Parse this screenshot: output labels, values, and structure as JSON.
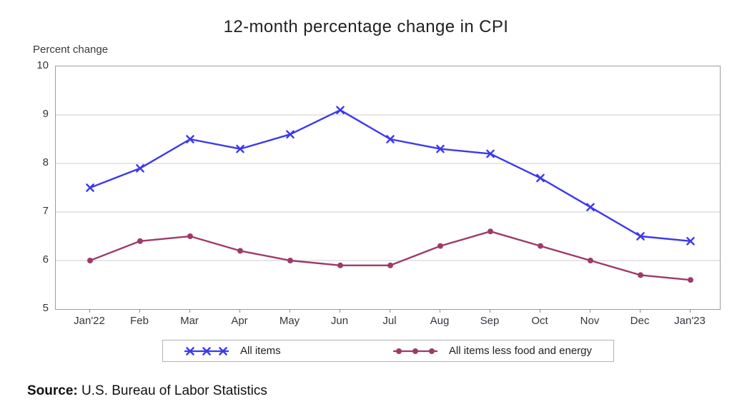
{
  "title": "12-month percentage change in CPI",
  "y_axis_label": "Percent change",
  "source": {
    "label": "Source:",
    "text": " U.S. Bureau of Labor Statistics"
  },
  "chart_data": {
    "type": "line",
    "title": "12-month percentage change in CPI",
    "xlabel": "",
    "ylabel": "Percent change",
    "categories": [
      "Jan'22",
      "Feb",
      "Mar",
      "Apr",
      "May",
      "Jun",
      "Jul",
      "Aug",
      "Sep",
      "Oct",
      "Nov",
      "Dec",
      "Jan'23"
    ],
    "series": [
      {
        "name": "All items",
        "marker": "x",
        "color": "#3b38f0",
        "values": [
          7.5,
          7.9,
          8.5,
          8.3,
          8.6,
          9.1,
          8.5,
          8.3,
          8.2,
          7.7,
          7.1,
          6.5,
          6.4
        ]
      },
      {
        "name": "All items less food and energy",
        "marker": "dot",
        "color": "#9e3a6a",
        "values": [
          6.0,
          6.4,
          6.5,
          6.2,
          6.0,
          5.9,
          5.9,
          6.3,
          6.6,
          6.3,
          6.0,
          5.7,
          5.6
        ]
      }
    ],
    "ylim": [
      5,
      10
    ],
    "yticks": [
      5,
      6,
      7,
      8,
      9,
      10
    ],
    "grid": true,
    "grid_color": "#d8d8d8",
    "legend_position": "bottom",
    "axis_border_color": "#9c9c9c"
  }
}
